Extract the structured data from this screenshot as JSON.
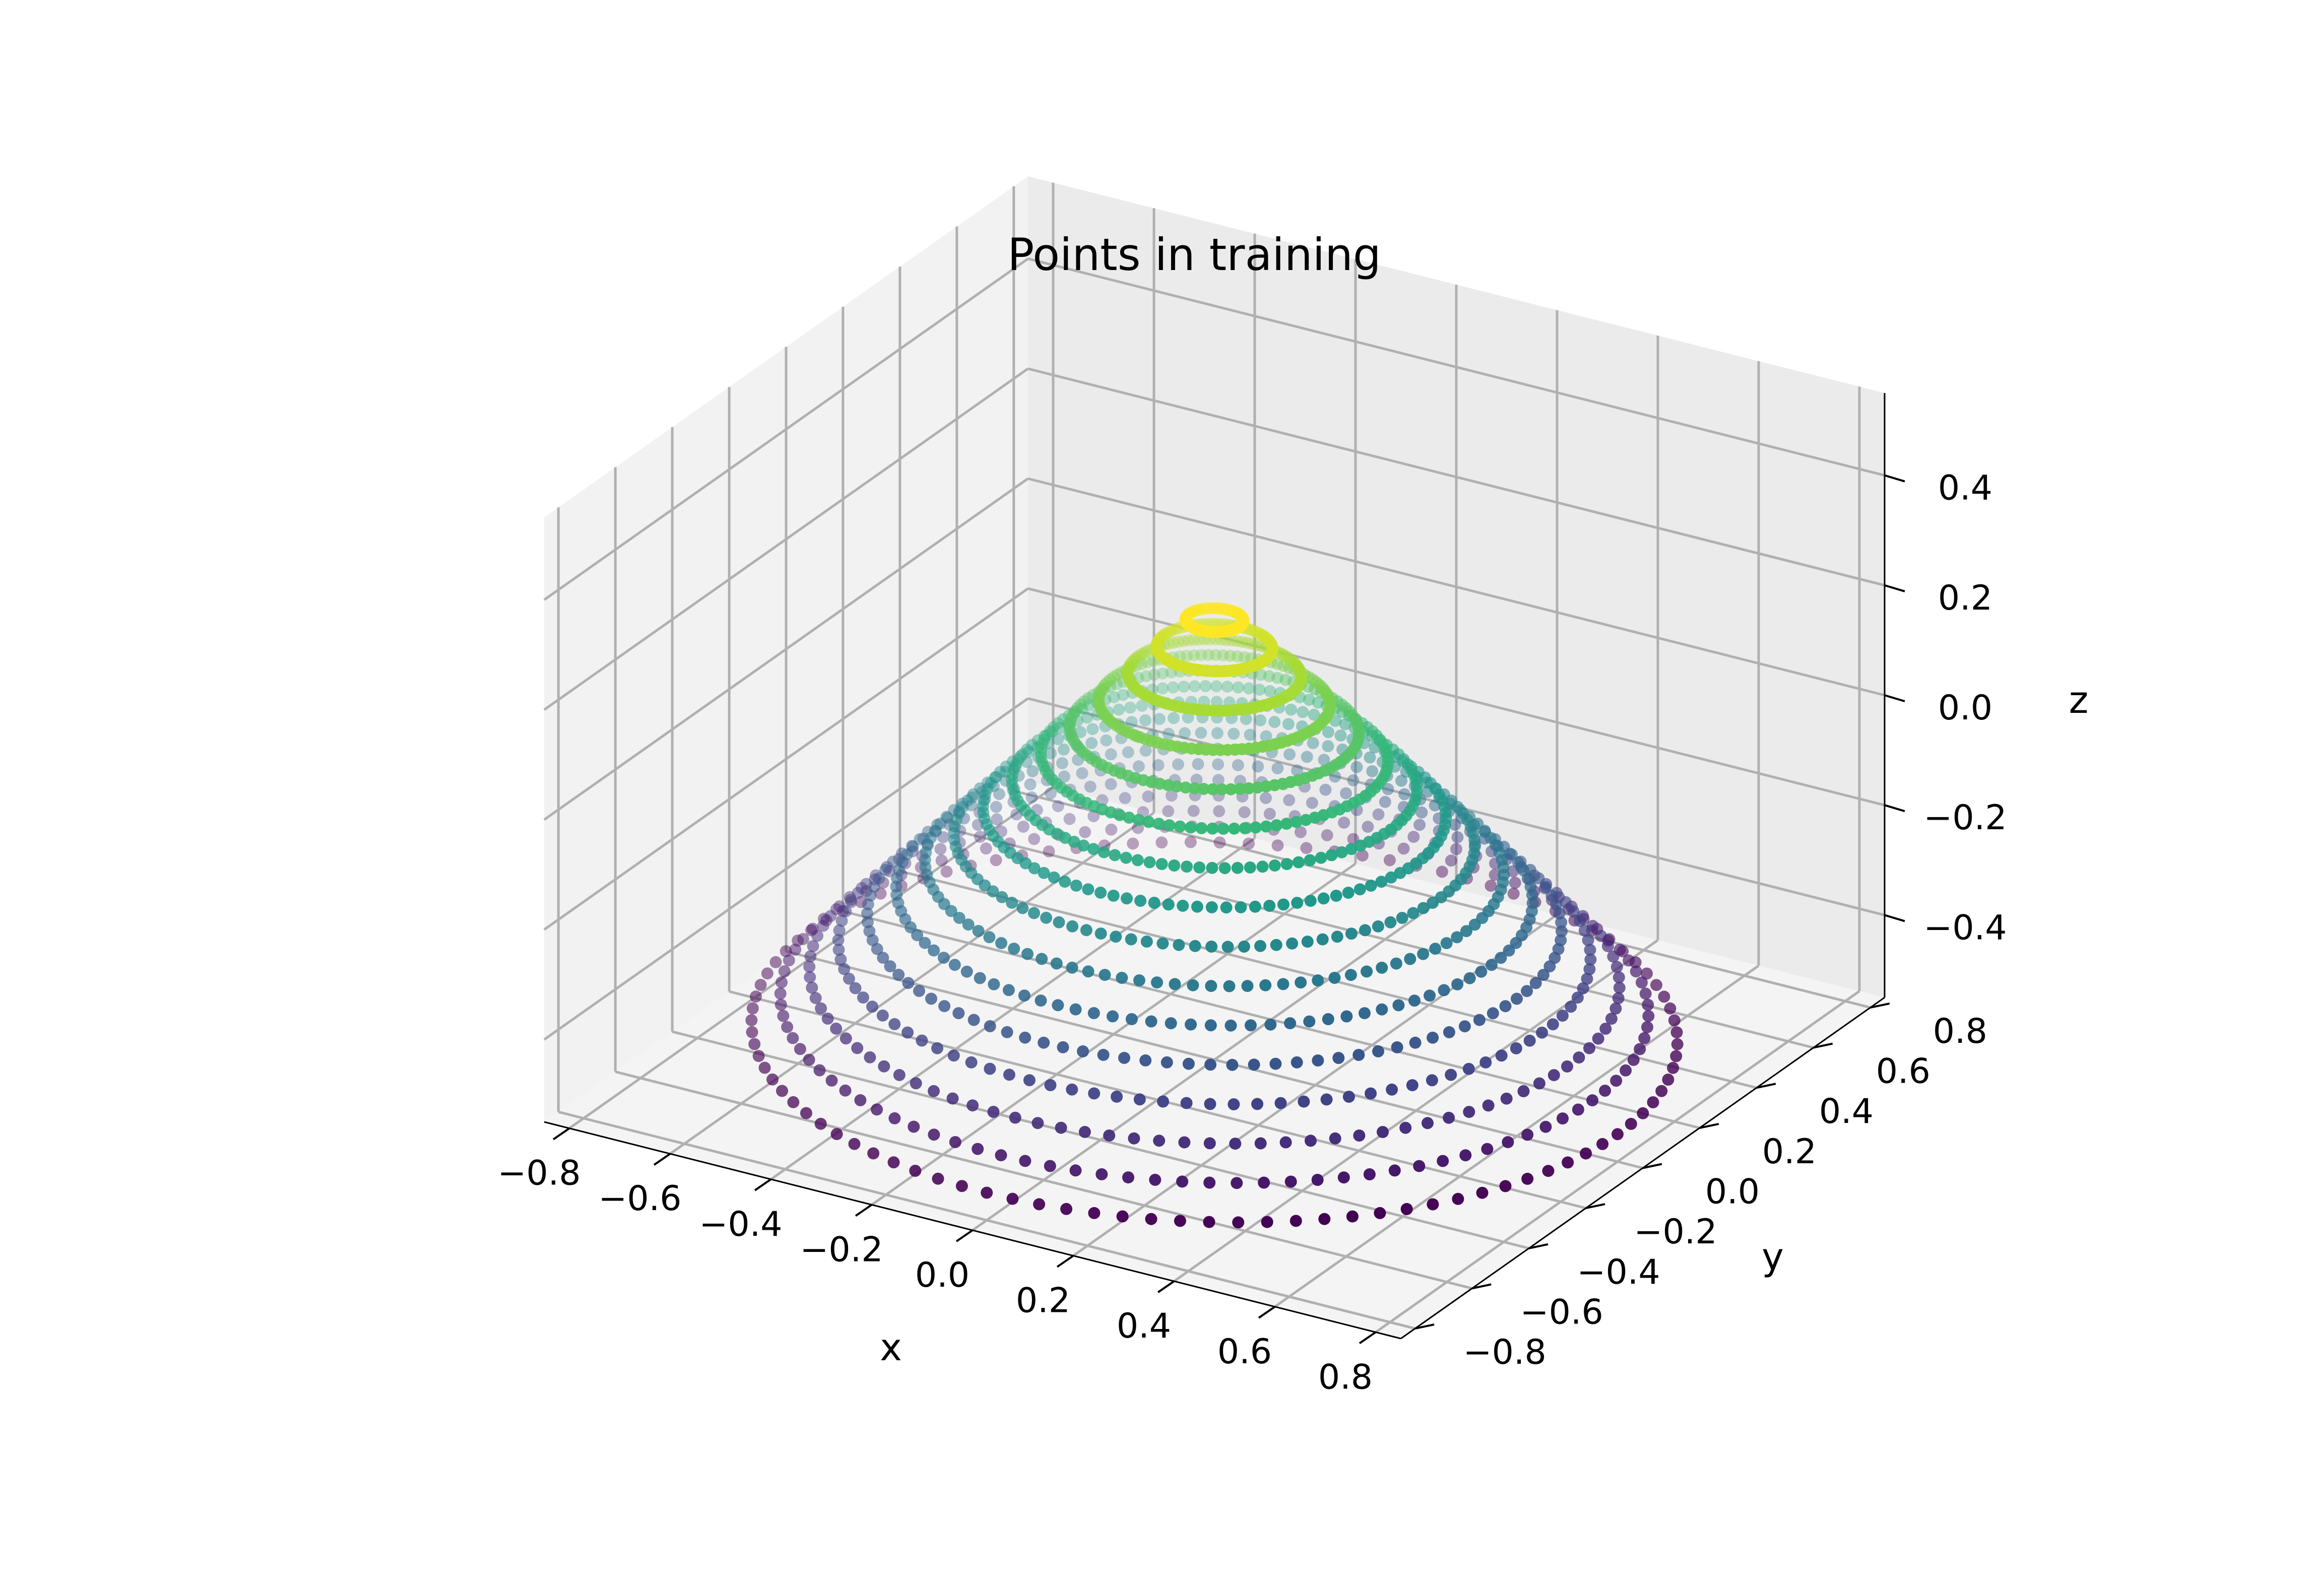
{
  "chart_data": {
    "type": "scatter",
    "projection": "3d",
    "title": "Points in training",
    "xlabel": "x",
    "ylabel": "y",
    "zlabel": "z",
    "xlim": [
      -0.85,
      0.85
    ],
    "ylim": [
      -0.85,
      0.85
    ],
    "zlim": [
      -0.55,
      0.55
    ],
    "xticks": [
      -0.8,
      -0.6,
      -0.4,
      -0.2,
      0.0,
      0.2,
      0.4,
      0.6,
      0.8
    ],
    "yticks": [
      -0.8,
      -0.6,
      -0.4,
      -0.2,
      0.0,
      0.2,
      0.4,
      0.6,
      0.8
    ],
    "zticks": [
      -0.4,
      -0.2,
      0.0,
      0.2,
      0.4
    ],
    "xtick_labels": [
      "−0.8",
      "−0.6",
      "−0.4",
      "−0.2",
      "0.0",
      "0.2",
      "0.4",
      "0.6",
      "0.8"
    ],
    "ytick_labels": [
      "−0.8",
      "−0.6",
      "−0.4",
      "−0.2",
      "0.0",
      "0.2",
      "0.4",
      "0.6",
      "0.8"
    ],
    "ztick_labels": [
      "−0.4",
      "−0.2",
      "0.0",
      "0.2",
      "0.4"
    ],
    "grid": true,
    "colormap": "viridis",
    "color_by": "z",
    "points_per_ring": 100,
    "rings": [
      {
        "z": -0.5,
        "radius": 0.8
      },
      {
        "z": -0.45,
        "radius": 0.75
      },
      {
        "z": -0.4,
        "radius": 0.7
      },
      {
        "z": -0.35,
        "radius": 0.65
      },
      {
        "z": -0.3,
        "radius": 0.6
      },
      {
        "z": -0.25,
        "radius": 0.55
      },
      {
        "z": -0.2,
        "radius": 0.5
      },
      {
        "z": -0.15,
        "radius": 0.45
      },
      {
        "z": -0.1,
        "radius": 0.4
      },
      {
        "z": -0.05,
        "radius": 0.35
      },
      {
        "z": 0.0,
        "radius": 0.3
      },
      {
        "z": 0.05,
        "radius": 0.25
      },
      {
        "z": 0.1,
        "radius": 0.2
      },
      {
        "z": 0.15,
        "radius": 0.15
      },
      {
        "z": 0.2,
        "radius": 0.1
      },
      {
        "z": 0.25,
        "radius": 0.05
      }
    ]
  }
}
